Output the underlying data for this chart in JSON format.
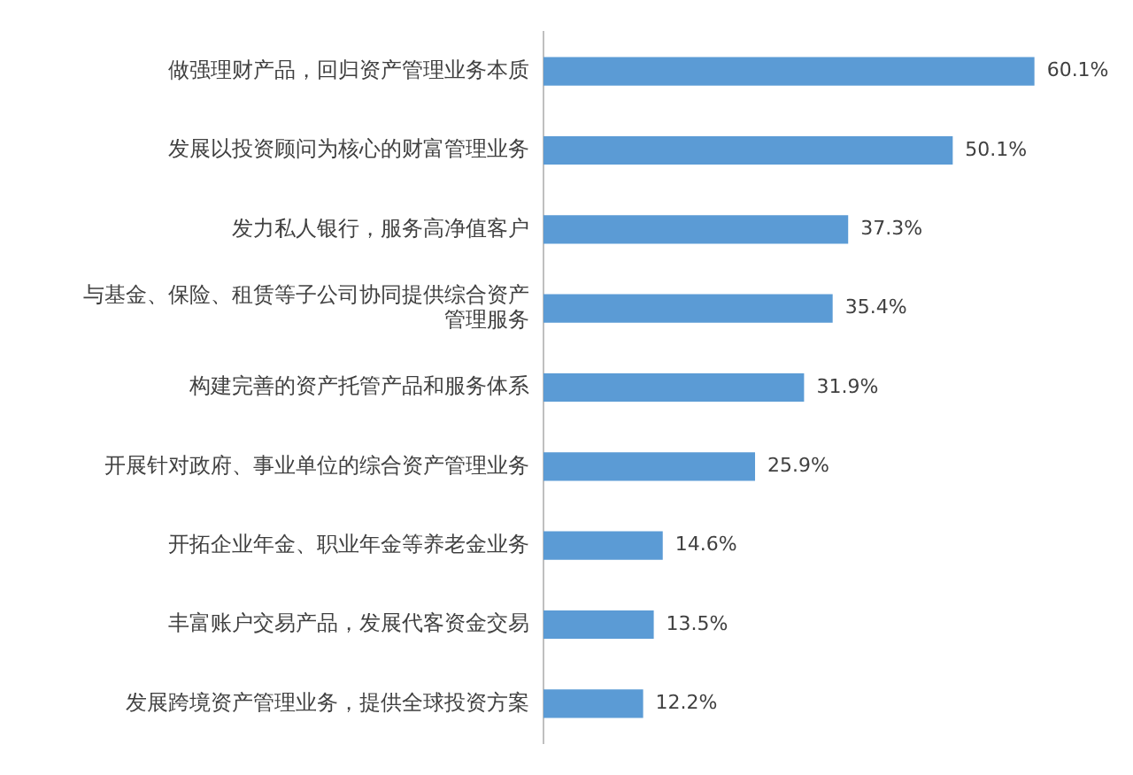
{
  "chart_data": {
    "type": "bar",
    "orientation": "horizontal",
    "categories": [
      "做强理财产品，回归资产管理业务本质",
      "发展以投资顾问为核心的财富管理业务",
      "发力私人银行，服务高净值客户",
      "与基金、保险、租赁等子公司协同提供综合资产管理服务",
      "构建完善的资产托管产品和服务体系",
      "开展针对政府、事业单位的综合资产管理业务",
      "开拓企业年金、职业年金等养老金业务",
      "丰富账户交易产品，发展代客资金交易",
      "发展跨境资产管理业务，提供全球投资方案"
    ],
    "values": [
      60.1,
      50.1,
      37.3,
      35.4,
      31.9,
      25.9,
      14.6,
      13.5,
      12.2
    ],
    "value_labels": [
      "60.1%",
      "50.1%",
      "37.3%",
      "35.4%",
      "31.9%",
      "25.9%",
      "14.6%",
      "13.5%",
      "12.2%"
    ],
    "color": "#5b9bd5",
    "tick_labels": "y",
    "grid": false,
    "legend": false
  }
}
